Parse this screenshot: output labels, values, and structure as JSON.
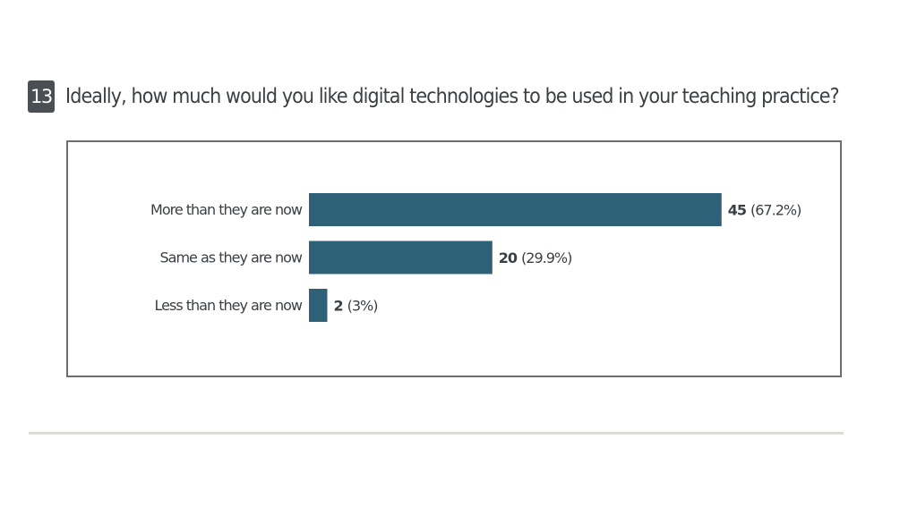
{
  "question": {
    "number": "13",
    "text": "Ideally, how much would you like digital technologies to be used in your teaching practice?"
  },
  "chart_data": {
    "type": "bar",
    "orientation": "horizontal",
    "categories": [
      "More than they are now",
      "Same as they are now",
      "Less than they are now"
    ],
    "values": [
      45,
      20,
      2
    ],
    "percent_labels": [
      "(67.2%)",
      "(29.9%)",
      "(3%)"
    ],
    "title": "",
    "xlabel": "",
    "ylabel": "",
    "grid": false,
    "legend": "none",
    "bar_color": "#2e6078"
  }
}
